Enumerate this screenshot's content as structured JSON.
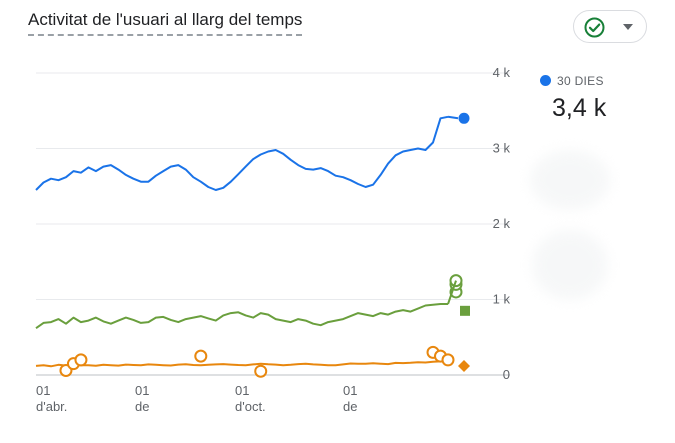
{
  "header": {
    "title": "Activitat de l'usuari al llarg del temps"
  },
  "status_chip": {
    "icon": "check-circle-icon",
    "menu_icon": "caret-down-icon",
    "color": "#188038"
  },
  "legend": {
    "label": "30 DIES",
    "value": "3,4 k",
    "color": "#1a73e8"
  },
  "chart_data": {
    "type": "line",
    "title": "Activitat de l'usuari al llarg del temps",
    "y_ticks": [
      "0",
      "1 k",
      "2 k",
      "3 k",
      "4 k"
    ],
    "ylim": [
      0,
      4000
    ],
    "x_ticks": [
      {
        "day": "01",
        "month": "d'abr."
      },
      {
        "day": "01",
        "month": "de"
      },
      {
        "day": "01",
        "month": "d'oct."
      },
      {
        "day": "01",
        "month": "de"
      }
    ],
    "grid": true,
    "series": [
      {
        "name": "30 DIES",
        "color": "#1a73e8",
        "marker": "circle",
        "values": [
          2450,
          2550,
          2600,
          2580,
          2620,
          2700,
          2680,
          2750,
          2700,
          2760,
          2780,
          2720,
          2650,
          2600,
          2560,
          2560,
          2640,
          2700,
          2760,
          2780,
          2720,
          2620,
          2560,
          2490,
          2450,
          2480,
          2560,
          2660,
          2760,
          2860,
          2920,
          2960,
          2980,
          2930,
          2850,
          2780,
          2730,
          2720,
          2740,
          2700,
          2640,
          2620,
          2580,
          2530,
          2490,
          2520,
          2650,
          2800,
          2910,
          2960,
          2980,
          3000,
          2980,
          3080,
          3400,
          3420
        ]
      },
      {
        "name": "",
        "color": "#6a9f3d",
        "marker": "square",
        "values": [
          620,
          690,
          700,
          740,
          680,
          760,
          700,
          720,
          760,
          710,
          680,
          720,
          760,
          730,
          690,
          700,
          760,
          770,
          730,
          700,
          740,
          760,
          780,
          750,
          720,
          790,
          820,
          830,
          790,
          760,
          820,
          800,
          740,
          720,
          700,
          740,
          720,
          680,
          660,
          700,
          720,
          740,
          780,
          820,
          800,
          780,
          820,
          800,
          840,
          860,
          840,
          880,
          920,
          930,
          940,
          940
        ],
        "markers_last": [
          1100,
          1200,
          1250
        ]
      },
      {
        "name": "",
        "color": "#e8870e",
        "marker": "diamond",
        "values": [
          120,
          130,
          115,
          135,
          125,
          140,
          130,
          128,
          122,
          136,
          130,
          125,
          138,
          132,
          128,
          140,
          135,
          130,
          126,
          138,
          142,
          132,
          128,
          136,
          140,
          145,
          138,
          132,
          130,
          140,
          150,
          142,
          138,
          130,
          135,
          145,
          150,
          140,
          136,
          130,
          128,
          140,
          152,
          150,
          148,
          156,
          150,
          145,
          160,
          158,
          162,
          170,
          165,
          175,
          180,
          190
        ],
        "open_circles": [
          [
            4,
            60
          ],
          [
            5,
            150
          ],
          [
            6,
            200
          ],
          [
            22,
            250
          ],
          [
            30,
            50
          ],
          [
            53,
            300
          ],
          [
            54,
            250
          ],
          [
            55,
            200
          ]
        ]
      }
    ]
  }
}
